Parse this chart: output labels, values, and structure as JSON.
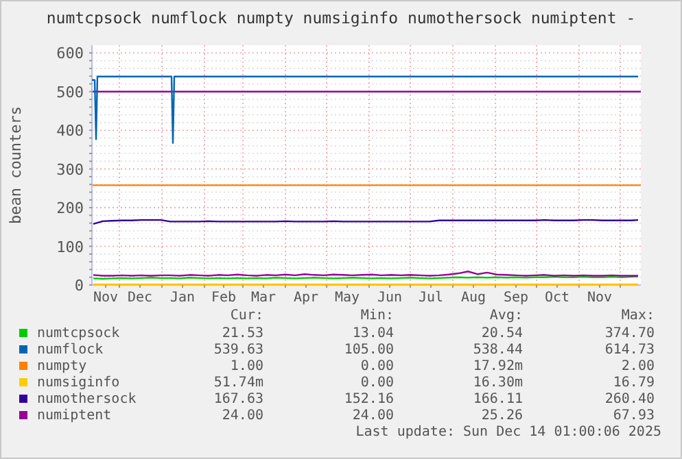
{
  "chart_data": {
    "type": "line",
    "title": "numtcpsock numflock numpty numsiginfo numothersock numiptent -",
    "ylabel": "bean counters",
    "x": [
      "2024-11-12",
      "2024-11-19",
      "2024-11-26",
      "2024-12-03",
      "2024-12-10",
      "2024-12-17",
      "2024-12-24",
      "2024-12-31",
      "2025-01-07",
      "2025-01-14",
      "2025-01-21",
      "2025-01-28",
      "2025-02-04",
      "2025-02-11",
      "2025-02-18",
      "2025-02-25",
      "2025-03-04",
      "2025-03-11",
      "2025-03-18",
      "2025-03-25",
      "2025-04-01",
      "2025-04-08",
      "2025-04-15",
      "2025-04-22",
      "2025-04-29",
      "2025-05-06",
      "2025-05-13",
      "2025-05-20",
      "2025-05-27",
      "2025-06-03",
      "2025-06-10",
      "2025-06-17",
      "2025-06-24",
      "2025-07-01",
      "2025-07-08",
      "2025-07-15",
      "2025-07-22",
      "2025-07-29",
      "2025-08-05",
      "2025-08-12",
      "2025-08-19",
      "2025-08-26",
      "2025-09-02",
      "2025-09-09",
      "2025-09-16",
      "2025-09-23",
      "2025-09-30",
      "2025-10-07",
      "2025-10-14",
      "2025-10-21",
      "2025-10-28",
      "2025-11-04",
      "2025-11-11",
      "2025-11-18",
      "2025-11-25",
      "2025-12-02",
      "2025-12-09",
      "2025-12-14"
    ],
    "series": [
      {
        "name": "numtcpsock",
        "color": "#00cc00",
        "values": [
          17,
          16,
          17,
          18,
          17,
          18,
          19,
          18,
          18,
          17,
          19,
          18,
          17,
          18,
          17,
          18,
          17,
          18,
          17,
          19,
          18,
          17,
          18,
          19,
          18,
          17,
          18,
          19,
          18,
          17,
          18,
          17,
          18,
          19,
          18,
          17,
          18,
          19,
          20,
          19,
          20,
          19,
          20,
          19,
          20,
          19,
          20,
          20,
          21,
          20,
          20,
          21,
          20,
          20,
          21,
          20,
          21,
          22
        ]
      },
      {
        "name": "numflock",
        "color": "#0066b3",
        "x": [
          "2024-11-11",
          "2024-11-13",
          "2024-11-14",
          "2024-11-15",
          "2024-11-16",
          "2025-01-08",
          "2025-01-09",
          "2025-01-10",
          "2025-12-14"
        ],
        "values": [
          530,
          530,
          377,
          539,
          539,
          539,
          367,
          539,
          539
        ]
      },
      {
        "name": "numpty",
        "color": "#ff8000",
        "values": [
          1,
          1,
          1,
          1,
          1,
          1,
          1,
          1,
          1,
          1,
          1,
          1,
          1,
          1,
          1,
          1,
          1,
          1,
          1,
          1,
          1,
          1,
          1,
          1,
          1,
          1,
          1,
          1,
          1,
          1,
          1,
          1,
          1,
          1,
          1,
          1,
          1,
          1,
          1,
          1,
          1,
          1,
          1,
          1,
          1,
          1,
          1,
          1,
          1,
          1,
          1,
          1,
          1,
          1,
          1,
          1,
          1,
          1
        ]
      },
      {
        "name": "numsiginfo",
        "color": "#ffcc00",
        "values": [
          0,
          0,
          0,
          0,
          0,
          0,
          0,
          0,
          0,
          0,
          0,
          0,
          0,
          0,
          0,
          0,
          0,
          0,
          0,
          0,
          0,
          0,
          0,
          0,
          0,
          0,
          0,
          0,
          0,
          0,
          0,
          0,
          0,
          0,
          0,
          0,
          0,
          0,
          0,
          0,
          0,
          0,
          0,
          0,
          0,
          0,
          0,
          0,
          0,
          0,
          0,
          0,
          0,
          0,
          0,
          0,
          0,
          0
        ]
      },
      {
        "name": "numothersock",
        "color": "#330099",
        "values": [
          158,
          165,
          166,
          167,
          167,
          168,
          168,
          168,
          164,
          164,
          164,
          164,
          165,
          164,
          164,
          164,
          164,
          164,
          164,
          164,
          165,
          164,
          164,
          164,
          164,
          165,
          164,
          164,
          164,
          164,
          164,
          164,
          164,
          164,
          164,
          164,
          167,
          167,
          167,
          167,
          167,
          167,
          167,
          167,
          167,
          167,
          167,
          168,
          167,
          167,
          167,
          168,
          168,
          167,
          167,
          167,
          167,
          168
        ]
      },
      {
        "name": "numiptent",
        "color": "#990099",
        "values": [
          26,
          24,
          24,
          25,
          24,
          25,
          24,
          25,
          25,
          24,
          26,
          25,
          24,
          26,
          25,
          27,
          25,
          24,
          26,
          25,
          27,
          25,
          28,
          26,
          25,
          27,
          26,
          25,
          26,
          27,
          25,
          26,
          25,
          26,
          25,
          24,
          25,
          27,
          30,
          35,
          28,
          32,
          27,
          26,
          25,
          24,
          25,
          26,
          24,
          25,
          24,
          25,
          24,
          24,
          25,
          24,
          24,
          24
        ]
      }
    ],
    "xlim": [
      "2024-11-11",
      "2025-12-16"
    ],
    "xticks": [
      {
        "value": "2024-11-21",
        "label": "Nov"
      },
      {
        "value": "2024-12-01",
        "label": null
      },
      {
        "value": "2024-12-16",
        "label": "Dec"
      },
      {
        "value": "2025-01-01",
        "label": null
      },
      {
        "value": "2025-01-16",
        "label": "Jan"
      },
      {
        "value": "2025-02-01",
        "label": null
      },
      {
        "value": "2025-02-15",
        "label": "Feb"
      },
      {
        "value": "2025-03-01",
        "label": null
      },
      {
        "value": "2025-03-16",
        "label": "Mar"
      },
      {
        "value": "2025-04-01",
        "label": null
      },
      {
        "value": "2025-04-16",
        "label": "Apr"
      },
      {
        "value": "2025-05-01",
        "label": null
      },
      {
        "value": "2025-05-16",
        "label": "May"
      },
      {
        "value": "2025-06-01",
        "label": null
      },
      {
        "value": "2025-06-16",
        "label": "Jun"
      },
      {
        "value": "2025-07-01",
        "label": null
      },
      {
        "value": "2025-07-16",
        "label": "Jul"
      },
      {
        "value": "2025-08-01",
        "label": null
      },
      {
        "value": "2025-08-16",
        "label": "Aug"
      },
      {
        "value": "2025-09-01",
        "label": null
      },
      {
        "value": "2025-09-16",
        "label": "Sep"
      },
      {
        "value": "2025-10-01",
        "label": null
      },
      {
        "value": "2025-10-16",
        "label": "Oct"
      },
      {
        "value": "2025-11-01",
        "label": null
      },
      {
        "value": "2025-11-16",
        "label": "Nov"
      },
      {
        "value": "2025-12-01",
        "label": null
      }
    ],
    "ylim": [
      0,
      620
    ],
    "yticks": [
      0,
      {
        "value": 20,
        "label": null
      },
      {
        "value": 40,
        "label": null
      },
      {
        "value": 60,
        "label": null
      },
      {
        "value": 80,
        "label": null
      },
      100,
      {
        "value": 120,
        "label": null
      },
      {
        "value": 140,
        "label": null
      },
      {
        "value": 160,
        "label": null
      },
      {
        "value": 180,
        "label": null
      },
      200,
      {
        "value": 220,
        "label": null
      },
      {
        "value": 240,
        "label": null
      },
      {
        "value": 260,
        "label": null
      },
      {
        "value": 280,
        "label": null
      },
      300,
      {
        "value": 320,
        "label": null
      },
      {
        "value": 340,
        "label": null
      },
      {
        "value": 360,
        "label": null
      },
      {
        "value": 380,
        "label": null
      },
      400,
      {
        "value": 420,
        "label": null
      },
      {
        "value": 440,
        "label": null
      },
      {
        "value": 460,
        "label": null
      },
      {
        "value": 480,
        "label": null
      },
      500,
      {
        "value": 520,
        "label": null
      },
      {
        "value": 540,
        "label": null
      },
      {
        "value": 560,
        "label": null
      },
      {
        "value": 580,
        "label": null
      },
      600
    ],
    "ref_lines": [
      {
        "axis": "y",
        "value": 500,
        "color": "#990099"
      },
      {
        "axis": "y",
        "value": 258,
        "color": "#ff8000"
      }
    ],
    "grid": true,
    "legend": "bottom",
    "marker": "none",
    "line_style": "solid",
    "annotations": [
      "Cur:",
      "Min:",
      "Avg:",
      "Max:",
      "21.53",
      "13.04",
      "20.54",
      "374.70",
      "539.63",
      "105.00",
      "538.44",
      "614.73",
      "1.00",
      "0.00",
      "17.92m",
      "2.00",
      "51.74m",
      "0.00",
      "16.30m",
      "16.79",
      "167.63",
      "152.16",
      "166.11",
      "260.40",
      "24.00",
      "24.00",
      "25.26",
      "67.93",
      "Last update: Sun Dec 14 01:00:06 2025"
    ]
  }
}
